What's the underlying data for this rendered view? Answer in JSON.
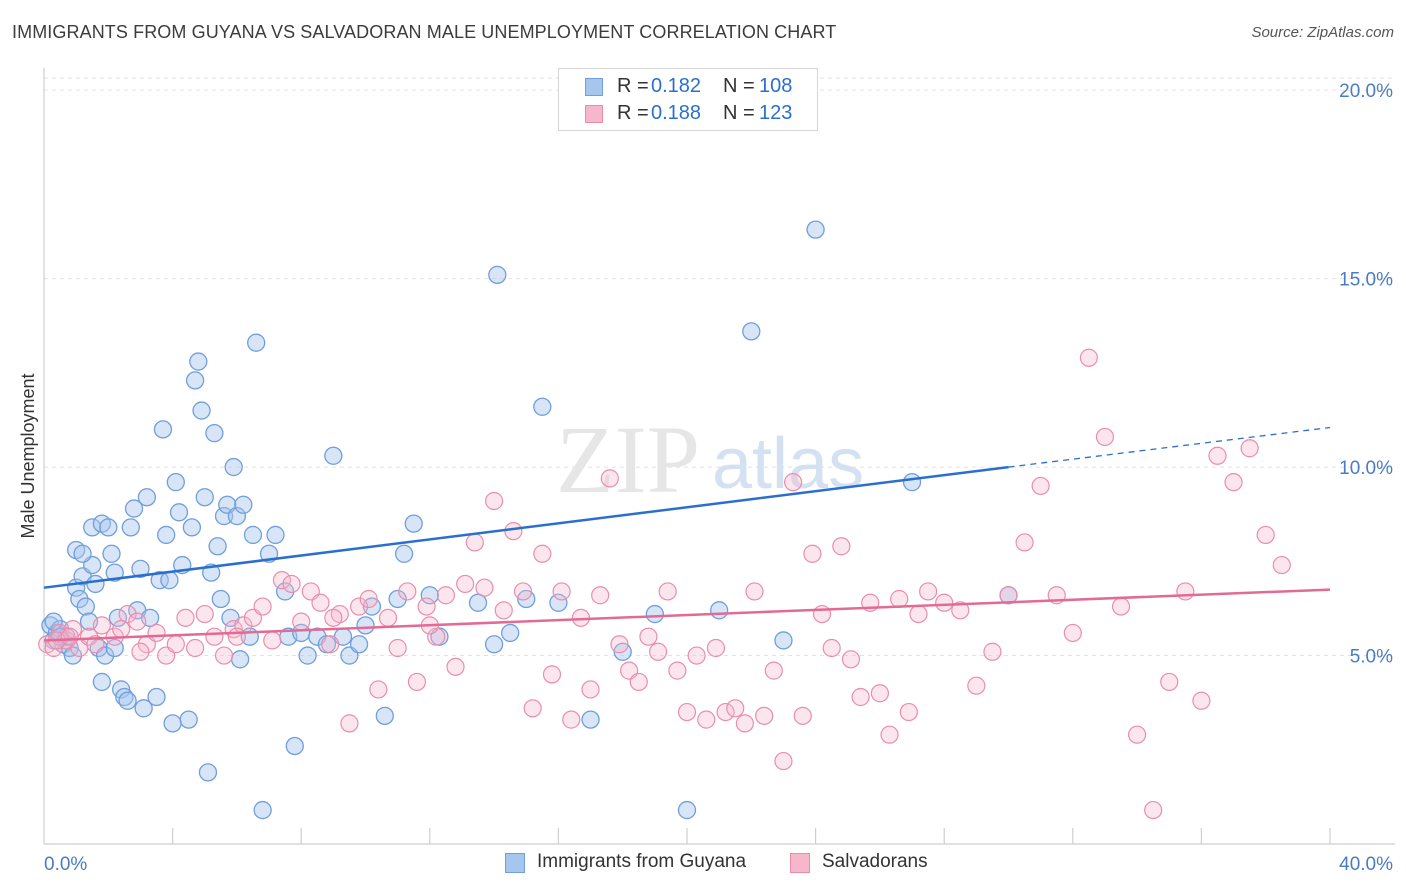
{
  "title": "IMMIGRANTS FROM GUYANA VS SALVADORAN MALE UNEMPLOYMENT CORRELATION CHART",
  "source": "Source: ZipAtlas.com",
  "watermark": {
    "part1": "ZIP",
    "part2": "atlas"
  },
  "legend_top": [
    {
      "r_label": "R =",
      "r_value": "0.182",
      "n_label": "N =",
      "n_value": "108"
    },
    {
      "r_label": "R =",
      "r_value": "0.188",
      "n_label": "N =",
      "n_value": "123"
    }
  ],
  "legend_bottom": [
    {
      "label": "Immigrants from Guyana"
    },
    {
      "label": "Salvadorans"
    }
  ],
  "colors": {
    "blue_fill": "#a7c6ee",
    "blue_stroke": "#6f9fdc",
    "blue_line": "#2a6fce",
    "pink_fill": "#f6b7cb",
    "pink_stroke": "#ea8dac",
    "pink_line": "#e26b95",
    "axis_label": "#4a7cc4"
  },
  "chart_data": {
    "type": "scatter",
    "title": "IMMIGRANTS FROM GUYANA VS SALVADORAN MALE UNEMPLOYMENT CORRELATION CHART",
    "xlabel": "",
    "ylabel": "Male Unemployment",
    "xlim": [
      0,
      40
    ],
    "ylim": [
      0,
      20.8
    ],
    "x_tick_labels": [
      "0.0%",
      "40.0%"
    ],
    "y_ticks": [
      5,
      10,
      15,
      20
    ],
    "y_tick_labels": [
      "5.0%",
      "10.0%",
      "15.0%",
      "20.0%"
    ],
    "grid": true,
    "series": [
      {
        "name": "Immigrants from Guyana",
        "R": 0.182,
        "N": 108,
        "trend": {
          "x_start": 0,
          "y_start": 6.8,
          "x_solid_end": 30,
          "y_solid_end": 10.0,
          "x_dash_end": 40,
          "y_dash_end": 11.05
        },
        "points": [
          [
            0.2,
            5.8
          ],
          [
            0.3,
            5.4
          ],
          [
            0.4,
            5.6
          ],
          [
            0.5,
            5.7
          ],
          [
            0.6,
            5.3
          ],
          [
            0.7,
            5.5
          ],
          [
            0.8,
            5.2
          ],
          [
            0.5,
            5.5
          ],
          [
            0.3,
            5.9
          ],
          [
            0.9,
            5.0
          ],
          [
            1.0,
            6.8
          ],
          [
            1.1,
            6.5
          ],
          [
            1.2,
            7.1
          ],
          [
            1.3,
            6.3
          ],
          [
            1.4,
            5.9
          ],
          [
            1.5,
            7.4
          ],
          [
            1.6,
            6.9
          ],
          [
            1.7,
            5.2
          ],
          [
            1.8,
            4.3
          ],
          [
            1.9,
            5.0
          ],
          [
            1.0,
            7.8
          ],
          [
            1.2,
            7.7
          ],
          [
            1.5,
            8.4
          ],
          [
            1.8,
            8.5
          ],
          [
            2.0,
            8.4
          ],
          [
            2.1,
            7.7
          ],
          [
            2.2,
            7.2
          ],
          [
            2.3,
            6.0
          ],
          [
            2.4,
            4.1
          ],
          [
            2.5,
            3.9
          ],
          [
            2.6,
            3.8
          ],
          [
            2.2,
            5.2
          ],
          [
            2.7,
            8.4
          ],
          [
            2.8,
            8.9
          ],
          [
            2.9,
            6.2
          ],
          [
            3.0,
            7.3
          ],
          [
            3.1,
            3.6
          ],
          [
            3.2,
            9.2
          ],
          [
            3.3,
            6.0
          ],
          [
            3.5,
            3.9
          ],
          [
            3.6,
            7.0
          ],
          [
            3.7,
            11.0
          ],
          [
            3.8,
            8.2
          ],
          [
            3.9,
            7.0
          ],
          [
            4.0,
            3.2
          ],
          [
            4.1,
            9.6
          ],
          [
            4.2,
            8.8
          ],
          [
            4.3,
            7.4
          ],
          [
            4.5,
            3.3
          ],
          [
            4.6,
            8.4
          ],
          [
            4.7,
            12.3
          ],
          [
            4.8,
            12.8
          ],
          [
            4.9,
            11.5
          ],
          [
            5.0,
            9.2
          ],
          [
            5.1,
            1.9
          ],
          [
            5.2,
            7.2
          ],
          [
            5.3,
            10.9
          ],
          [
            5.4,
            7.9
          ],
          [
            5.5,
            6.5
          ],
          [
            5.6,
            8.7
          ],
          [
            5.7,
            9.0
          ],
          [
            5.8,
            6.0
          ],
          [
            5.9,
            10.0
          ],
          [
            6.0,
            8.7
          ],
          [
            6.1,
            4.9
          ],
          [
            6.2,
            9.0
          ],
          [
            6.4,
            5.5
          ],
          [
            6.5,
            8.2
          ],
          [
            6.6,
            13.3
          ],
          [
            6.8,
            0.9
          ],
          [
            7.0,
            7.7
          ],
          [
            7.2,
            8.2
          ],
          [
            7.5,
            6.7
          ],
          [
            7.6,
            5.5
          ],
          [
            7.8,
            2.6
          ],
          [
            8.0,
            5.6
          ],
          [
            8.2,
            5.0
          ],
          [
            8.5,
            5.5
          ],
          [
            8.8,
            5.3
          ],
          [
            9.0,
            10.3
          ],
          [
            9.3,
            5.5
          ],
          [
            9.5,
            5.0
          ],
          [
            9.8,
            5.3
          ],
          [
            10.0,
            5.8
          ],
          [
            10.2,
            6.3
          ],
          [
            10.6,
            3.4
          ],
          [
            11.0,
            6.5
          ],
          [
            11.2,
            7.7
          ],
          [
            11.5,
            8.5
          ],
          [
            12.0,
            6.6
          ],
          [
            12.3,
            5.5
          ],
          [
            13.5,
            6.4
          ],
          [
            14.0,
            5.3
          ],
          [
            14.1,
            15.1
          ],
          [
            14.5,
            5.6
          ],
          [
            15.0,
            6.5
          ],
          [
            15.5,
            11.6
          ],
          [
            16.0,
            6.4
          ],
          [
            17.0,
            3.3
          ],
          [
            18.0,
            5.1
          ],
          [
            19.0,
            6.1
          ],
          [
            20.0,
            0.9
          ],
          [
            21.0,
            6.2
          ],
          [
            22.0,
            13.6
          ],
          [
            23.0,
            5.4
          ],
          [
            24.0,
            16.3
          ],
          [
            27.0,
            9.6
          ],
          [
            30.0,
            6.6
          ]
        ]
      },
      {
        "name": "Salvadorans",
        "R": 0.188,
        "N": 123,
        "trend": {
          "x_start": 0,
          "y_start": 5.4,
          "x_end": 40,
          "y_end": 6.75
        },
        "points": [
          [
            0.1,
            5.3
          ],
          [
            0.3,
            5.2
          ],
          [
            0.5,
            5.6
          ],
          [
            0.7,
            5.4
          ],
          [
            0.9,
            5.7
          ],
          [
            1.1,
            5.2
          ],
          [
            1.4,
            5.5
          ],
          [
            1.8,
            5.8
          ],
          [
            2.2,
            5.5
          ],
          [
            2.6,
            6.1
          ],
          [
            2.9,
            5.9
          ],
          [
            3.2,
            5.3
          ],
          [
            3.5,
            5.6
          ],
          [
            3.8,
            5.0
          ],
          [
            4.1,
            5.3
          ],
          [
            4.4,
            6.0
          ],
          [
            4.7,
            5.2
          ],
          [
            5.0,
            6.1
          ],
          [
            5.3,
            5.5
          ],
          [
            5.6,
            5.0
          ],
          [
            5.9,
            5.7
          ],
          [
            6.2,
            5.8
          ],
          [
            6.5,
            6.0
          ],
          [
            6.8,
            6.3
          ],
          [
            7.1,
            5.4
          ],
          [
            7.4,
            7.0
          ],
          [
            7.7,
            6.9
          ],
          [
            8.0,
            5.9
          ],
          [
            8.3,
            6.7
          ],
          [
            8.6,
            6.4
          ],
          [
            8.9,
            5.3
          ],
          [
            9.2,
            6.1
          ],
          [
            9.5,
            3.2
          ],
          [
            9.8,
            6.3
          ],
          [
            10.1,
            6.5
          ],
          [
            10.4,
            4.1
          ],
          [
            10.7,
            6.0
          ],
          [
            11.0,
            5.2
          ],
          [
            11.3,
            6.7
          ],
          [
            11.6,
            4.3
          ],
          [
            11.9,
            6.3
          ],
          [
            12.2,
            5.5
          ],
          [
            12.5,
            6.6
          ],
          [
            12.8,
            4.7
          ],
          [
            13.1,
            6.9
          ],
          [
            13.4,
            8.0
          ],
          [
            13.7,
            6.8
          ],
          [
            14.0,
            9.1
          ],
          [
            14.3,
            6.2
          ],
          [
            14.6,
            8.3
          ],
          [
            14.9,
            6.7
          ],
          [
            15.2,
            3.6
          ],
          [
            15.5,
            7.7
          ],
          [
            15.8,
            4.5
          ],
          [
            16.1,
            6.7
          ],
          [
            16.4,
            3.3
          ],
          [
            16.7,
            6.0
          ],
          [
            17.0,
            4.1
          ],
          [
            17.3,
            6.6
          ],
          [
            17.6,
            9.7
          ],
          [
            17.9,
            5.3
          ],
          [
            18.2,
            4.6
          ],
          [
            18.5,
            4.3
          ],
          [
            18.8,
            5.5
          ],
          [
            19.1,
            5.1
          ],
          [
            19.4,
            6.7
          ],
          [
            19.7,
            4.6
          ],
          [
            20.0,
            3.5
          ],
          [
            20.3,
            5.0
          ],
          [
            20.6,
            3.3
          ],
          [
            20.9,
            5.2
          ],
          [
            21.2,
            3.5
          ],
          [
            21.5,
            3.6
          ],
          [
            21.8,
            3.2
          ],
          [
            22.1,
            6.7
          ],
          [
            22.4,
            3.4
          ],
          [
            22.7,
            4.6
          ],
          [
            23.0,
            2.2
          ],
          [
            23.3,
            9.6
          ],
          [
            23.6,
            3.4
          ],
          [
            23.9,
            7.7
          ],
          [
            24.2,
            6.1
          ],
          [
            24.5,
            5.2
          ],
          [
            24.8,
            7.9
          ],
          [
            25.1,
            4.9
          ],
          [
            25.4,
            3.9
          ],
          [
            25.7,
            6.4
          ],
          [
            26.0,
            4.0
          ],
          [
            26.3,
            2.9
          ],
          [
            26.6,
            6.5
          ],
          [
            26.9,
            3.5
          ],
          [
            27.2,
            6.1
          ],
          [
            27.5,
            6.7
          ],
          [
            28.0,
            6.4
          ],
          [
            28.5,
            6.2
          ],
          [
            29.0,
            4.2
          ],
          [
            29.5,
            5.1
          ],
          [
            30.0,
            6.6
          ],
          [
            30.5,
            8.0
          ],
          [
            31.0,
            9.5
          ],
          [
            31.5,
            6.6
          ],
          [
            32.0,
            5.6
          ],
          [
            32.5,
            12.9
          ],
          [
            33.0,
            10.8
          ],
          [
            33.5,
            6.3
          ],
          [
            34.0,
            2.9
          ],
          [
            34.5,
            0.9
          ],
          [
            35.0,
            4.3
          ],
          [
            35.5,
            6.7
          ],
          [
            36.0,
            3.8
          ],
          [
            36.5,
            10.3
          ],
          [
            37.0,
            9.6
          ],
          [
            37.5,
            10.5
          ],
          [
            38.0,
            8.2
          ],
          [
            38.5,
            7.4
          ],
          [
            0.4,
            5.4
          ],
          [
            0.8,
            5.5
          ],
          [
            1.6,
            5.3
          ],
          [
            2.4,
            5.7
          ],
          [
            3.0,
            5.1
          ],
          [
            6.0,
            5.5
          ],
          [
            9.0,
            6.0
          ],
          [
            12.0,
            5.8
          ]
        ]
      }
    ]
  }
}
